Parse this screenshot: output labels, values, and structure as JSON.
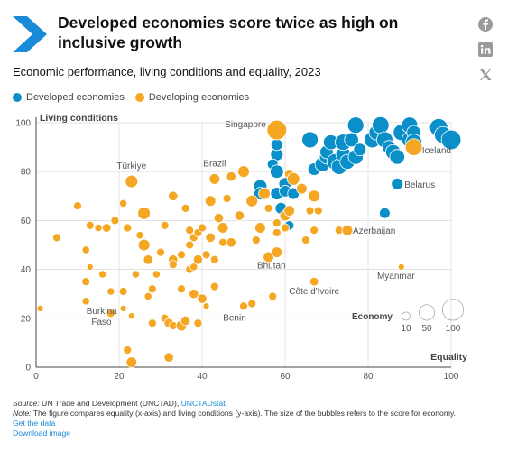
{
  "header": {
    "title": "Developed economies score twice as high on inclusive growth",
    "subtitle": "Economic performance, living conditions and equality, 2023",
    "accent_color": "#1a8bd6",
    "share_icons": [
      "facebook-icon",
      "linkedin-icon",
      "x-icon"
    ]
  },
  "legend": {
    "items": [
      {
        "label": "Developed economies",
        "color": "#0a8fc9"
      },
      {
        "label": "Developing economies",
        "color": "#f5a623"
      }
    ]
  },
  "footer": {
    "source_label": "Source:",
    "source_text": " UN Trade and Development (UNCTAD), ",
    "source_link": "UNCTADstat",
    "source_end": ".",
    "note_label": "Note:",
    "note_text": " The figure compares equality (x-axis) and living conditions (y-axis). The size of the bubbles refers to the score for economy.",
    "get_data": "Get the data",
    "download": "Download image"
  },
  "chart_data": {
    "type": "scatter",
    "xlabel": "Equality",
    "ylabel": "Living conditions",
    "xlim": [
      0,
      100
    ],
    "ylim": [
      0,
      100
    ],
    "xticks": [
      0,
      20,
      40,
      60,
      80,
      100
    ],
    "yticks": [
      0,
      20,
      40,
      60,
      80,
      100
    ],
    "grid": true,
    "size_legend": {
      "title": "Economy",
      "values": [
        10,
        50,
        100
      ]
    },
    "series": [
      {
        "name": "Developed economies",
        "color": "#0a8fc9",
        "points": [
          [
            58,
            87,
            30
          ],
          [
            58,
            91,
            25
          ],
          [
            57,
            83,
            20
          ],
          [
            58,
            80,
            35
          ],
          [
            60,
            75,
            30
          ],
          [
            54,
            74,
            35
          ],
          [
            54,
            71,
            30
          ],
          [
            58,
            71,
            30
          ],
          [
            60,
            72,
            25
          ],
          [
            62,
            71,
            25
          ],
          [
            61,
            58,
            15
          ],
          [
            59,
            65,
            25
          ],
          [
            66,
            93,
            55
          ],
          [
            67,
            81,
            30
          ],
          [
            69,
            83,
            45
          ],
          [
            70,
            86,
            40
          ],
          [
            70,
            88,
            35
          ],
          [
            71,
            92,
            45
          ],
          [
            72,
            84,
            55
          ],
          [
            73,
            82,
            50
          ],
          [
            74,
            87,
            45
          ],
          [
            74,
            92,
            55
          ],
          [
            75,
            84,
            45
          ],
          [
            76,
            93,
            40
          ],
          [
            77,
            86,
            45
          ],
          [
            77,
            99,
            55
          ],
          [
            78,
            89,
            30
          ],
          [
            81,
            93,
            55
          ],
          [
            82,
            96,
            45
          ],
          [
            83,
            99,
            60
          ],
          [
            84,
            93,
            55
          ],
          [
            85,
            90,
            35
          ],
          [
            86,
            88,
            45
          ],
          [
            88,
            96,
            55
          ],
          [
            87,
            86,
            45
          ],
          [
            90,
            93,
            50
          ],
          [
            90,
            99,
            55
          ],
          [
            91,
            96,
            40
          ],
          [
            91,
            92,
            55
          ],
          [
            97,
            98,
            70
          ],
          [
            98,
            95,
            60
          ],
          [
            100,
            93,
            85
          ],
          [
            87,
            75,
            25
          ],
          [
            84,
            63,
            20
          ]
        ]
      },
      {
        "name": "Developing economies",
        "color": "#f5a623",
        "points": [
          [
            58,
            97,
            85
          ],
          [
            23,
            76,
            30
          ],
          [
            1,
            24,
            5
          ],
          [
            5,
            53,
            10
          ],
          [
            10,
            66,
            10
          ],
          [
            12,
            48,
            8
          ],
          [
            13,
            41,
            5
          ],
          [
            12,
            27,
            8
          ],
          [
            12,
            35,
            10
          ],
          [
            13,
            58,
            10
          ],
          [
            15,
            57,
            8
          ],
          [
            16,
            38,
            8
          ],
          [
            17,
            57,
            12
          ],
          [
            18,
            31,
            8
          ],
          [
            18,
            22,
            10
          ],
          [
            19,
            60,
            10
          ],
          [
            21,
            24,
            5
          ],
          [
            21,
            67,
            8
          ],
          [
            21,
            31,
            10
          ],
          [
            22,
            7,
            10
          ],
          [
            22,
            57,
            10
          ],
          [
            23,
            2,
            20
          ],
          [
            23,
            21,
            5
          ],
          [
            24,
            38,
            8
          ],
          [
            25,
            54,
            8
          ],
          [
            26,
            63,
            30
          ],
          [
            26,
            50,
            25
          ],
          [
            27,
            29,
            8
          ],
          [
            27,
            44,
            15
          ],
          [
            28,
            18,
            10
          ],
          [
            28,
            32,
            10
          ],
          [
            29,
            38,
            8
          ],
          [
            30,
            47,
            10
          ],
          [
            31,
            20,
            10
          ],
          [
            31,
            58,
            10
          ],
          [
            32,
            18,
            15
          ],
          [
            32,
            4,
            15
          ],
          [
            33,
            44,
            15
          ],
          [
            33,
            42,
            10
          ],
          [
            33,
            70,
            15
          ],
          [
            33,
            17,
            10
          ],
          [
            35,
            46,
            10
          ],
          [
            35,
            32,
            10
          ],
          [
            35,
            17,
            20
          ],
          [
            36,
            65,
            10
          ],
          [
            36,
            19,
            15
          ],
          [
            37,
            40,
            10
          ],
          [
            37,
            56,
            10
          ],
          [
            37,
            50,
            10
          ],
          [
            38,
            53,
            10
          ],
          [
            38,
            30,
            15
          ],
          [
            38,
            41,
            8
          ],
          [
            39,
            18,
            10
          ],
          [
            39,
            55,
            10
          ],
          [
            39,
            44,
            15
          ],
          [
            40,
            28,
            15
          ],
          [
            40,
            57,
            10
          ],
          [
            41,
            46,
            10
          ],
          [
            41,
            25,
            5
          ],
          [
            42,
            68,
            20
          ],
          [
            42,
            53,
            15
          ],
          [
            43,
            77,
            20
          ],
          [
            43,
            33,
            10
          ],
          [
            43,
            44,
            10
          ],
          [
            44,
            61,
            15
          ],
          [
            45,
            51,
            10
          ],
          [
            45,
            57,
            20
          ],
          [
            46,
            69,
            10
          ],
          [
            47,
            78,
            15
          ],
          [
            47,
            51,
            15
          ],
          [
            49,
            62,
            15
          ],
          [
            50,
            80,
            25
          ],
          [
            50,
            25,
            10
          ],
          [
            52,
            26,
            10
          ],
          [
            52,
            68,
            25
          ],
          [
            53,
            52,
            10
          ],
          [
            54,
            57,
            20
          ],
          [
            55,
            71,
            25
          ],
          [
            56,
            65,
            10
          ],
          [
            56,
            45,
            20
          ],
          [
            57,
            29,
            10
          ],
          [
            58,
            55,
            10
          ],
          [
            58,
            59,
            10
          ],
          [
            58,
            47,
            20
          ],
          [
            60,
            62,
            20
          ],
          [
            60,
            57,
            10
          ],
          [
            61,
            79,
            15
          ],
          [
            61,
            64,
            20
          ],
          [
            62,
            77,
            30
          ],
          [
            64,
            73,
            20
          ],
          [
            65,
            52,
            10
          ],
          [
            66,
            64,
            10
          ],
          [
            67,
            56,
            10
          ],
          [
            67,
            70,
            25
          ],
          [
            67,
            35,
            12
          ],
          [
            68,
            64,
            10
          ],
          [
            73,
            56,
            10
          ],
          [
            75,
            56,
            20
          ],
          [
            88,
            41,
            5
          ],
          [
            91,
            90,
            60
          ]
        ]
      }
    ],
    "annotations": [
      {
        "text": "Singapore",
        "x": 58,
        "y": 97
      },
      {
        "text": "Iceland",
        "x": 100,
        "y": 93
      },
      {
        "text": "Belarus",
        "x": 87,
        "y": 75
      },
      {
        "text": "Azerbaijan",
        "x": 75,
        "y": 56
      },
      {
        "text": "Myanmar",
        "x": 88,
        "y": 41
      },
      {
        "text": "Türkiye",
        "x": 23,
        "y": 76
      },
      {
        "text": "Brazil",
        "x": 43,
        "y": 77
      },
      {
        "text": "Bhutan",
        "x": 58,
        "y": 47
      },
      {
        "text": "Côte d'Ivoire",
        "x": 67,
        "y": 35
      },
      {
        "text": "Benin",
        "x": 50,
        "y": 25
      },
      {
        "text": "Burkina Faso",
        "x": 21,
        "y": 24
      }
    ]
  }
}
